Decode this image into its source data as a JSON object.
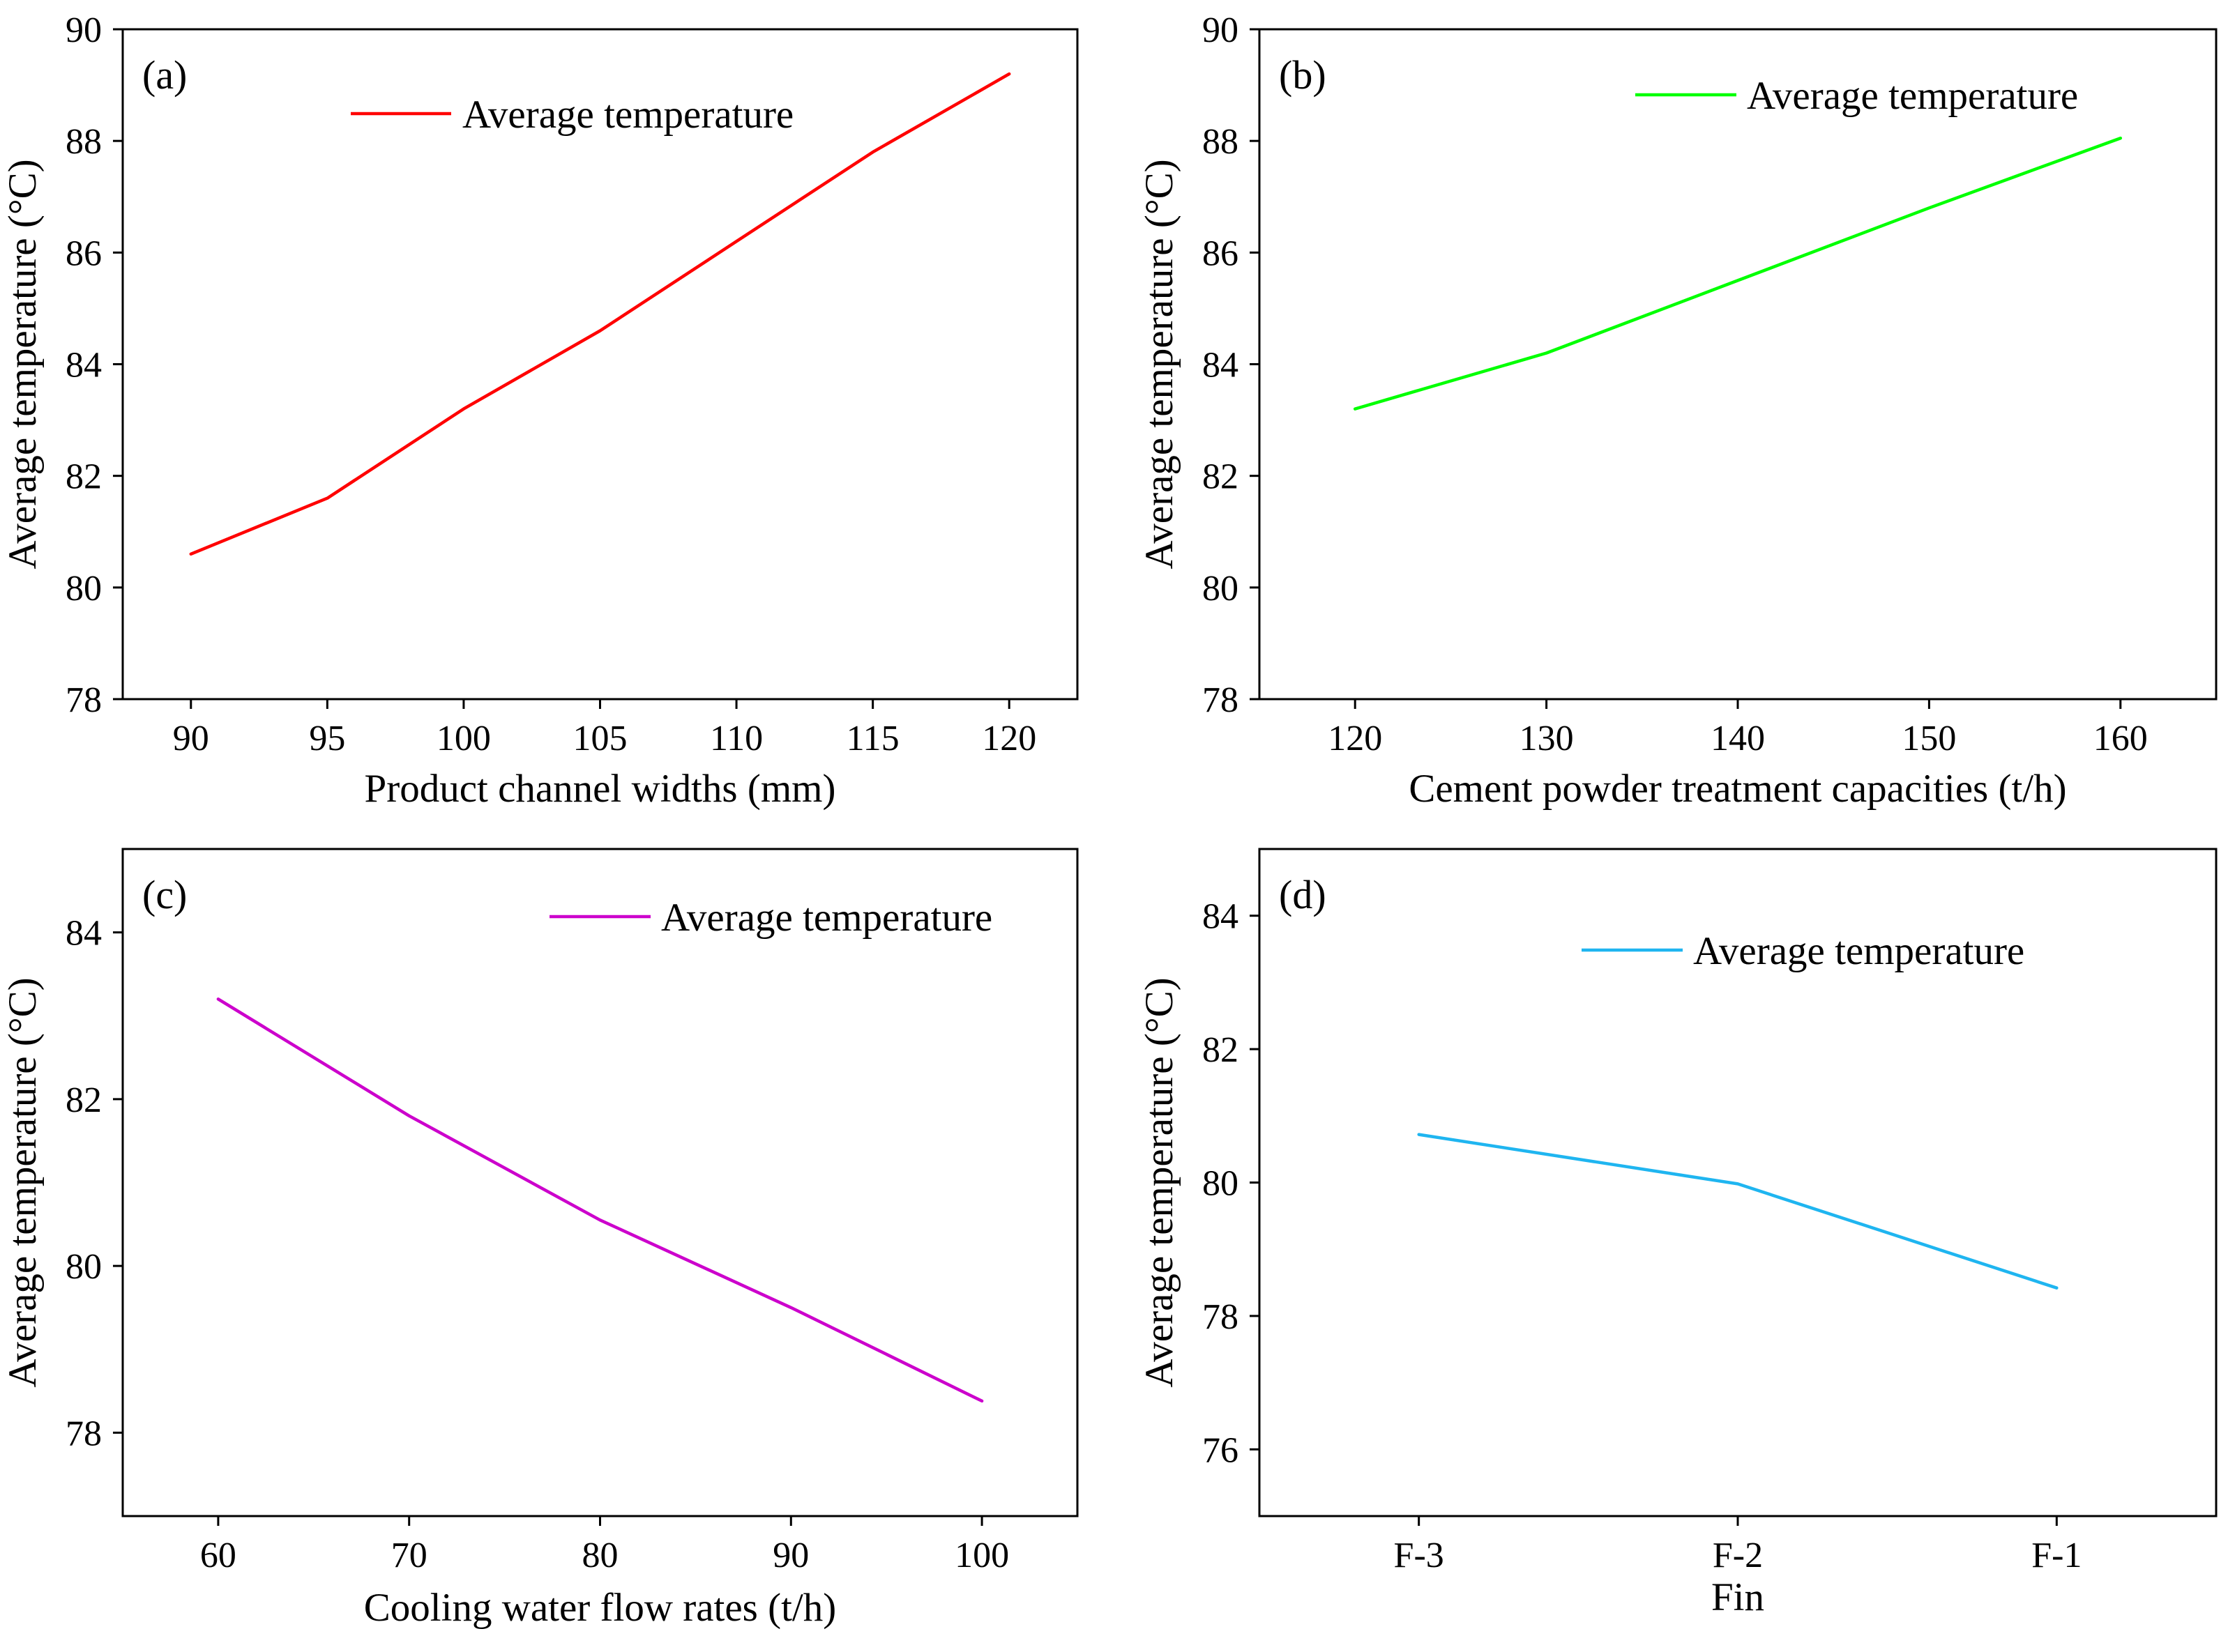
{
  "chart_data": [
    {
      "type": "line",
      "panel_label": "(a)",
      "xlabel": "Product channel widths (mm)",
      "ylabel": "Average temperature (°C)",
      "x_ticks": [
        90,
        95,
        100,
        105,
        110,
        115,
        120
      ],
      "y_ticks": [
        78,
        80,
        82,
        84,
        86,
        88,
        90
      ],
      "xlim": [
        87.5,
        122.5
      ],
      "ylim": [
        78,
        90
      ],
      "legend_placement": "top-center",
      "series": [
        {
          "name": "Average temperature",
          "color": "#ff0000",
          "x": [
            90,
            95,
            100,
            105,
            110,
            115,
            120
          ],
          "y": [
            80.6,
            81.6,
            83.2,
            84.6,
            86.2,
            87.8,
            89.2
          ]
        }
      ]
    },
    {
      "type": "line",
      "panel_label": "(b)",
      "xlabel": "Cement powder treatment capacities (t/h)",
      "ylabel": "Average temperature (°C)",
      "x_ticks": [
        120,
        130,
        140,
        150,
        160
      ],
      "y_ticks": [
        78,
        80,
        82,
        84,
        86,
        88,
        90
      ],
      "xlim": [
        115,
        165
      ],
      "ylim": [
        78,
        90
      ],
      "legend_placement": "top-right",
      "series": [
        {
          "name": "Average temperature",
          "color": "#00ff00",
          "x": [
            120,
            130,
            140,
            150,
            160
          ],
          "y": [
            83.2,
            84.2,
            85.5,
            86.8,
            88.05
          ]
        }
      ]
    },
    {
      "type": "line",
      "panel_label": "(c)",
      "xlabel": "Cooling water flow rates (t/h)",
      "ylabel": "Average temperature (°C)",
      "x_ticks": [
        60,
        70,
        80,
        90,
        100
      ],
      "y_ticks": [
        78,
        80,
        82,
        84
      ],
      "xlim": [
        55,
        105
      ],
      "ylim": [
        77,
        85
      ],
      "legend_placement": "top-right",
      "series": [
        {
          "name": "Average temperature",
          "color": "#cc00cc",
          "x": [
            60,
            70,
            80,
            90,
            100
          ],
          "y": [
            83.2,
            81.8,
            80.55,
            79.5,
            78.38
          ]
        }
      ]
    },
    {
      "type": "line",
      "panel_label": "(d)",
      "xlabel": "Fin",
      "ylabel": "Average temperature (°C)",
      "categories": [
        "F-3",
        "F-2",
        "F-1"
      ],
      "y_ticks": [
        76,
        78,
        80,
        82,
        84
      ],
      "ylim": [
        75,
        85
      ],
      "legend_placement": "top-center",
      "series": [
        {
          "name": "Average temperature",
          "color": "#1fb5f0",
          "values": [
            80.72,
            79.98,
            78.42
          ]
        }
      ]
    }
  ]
}
